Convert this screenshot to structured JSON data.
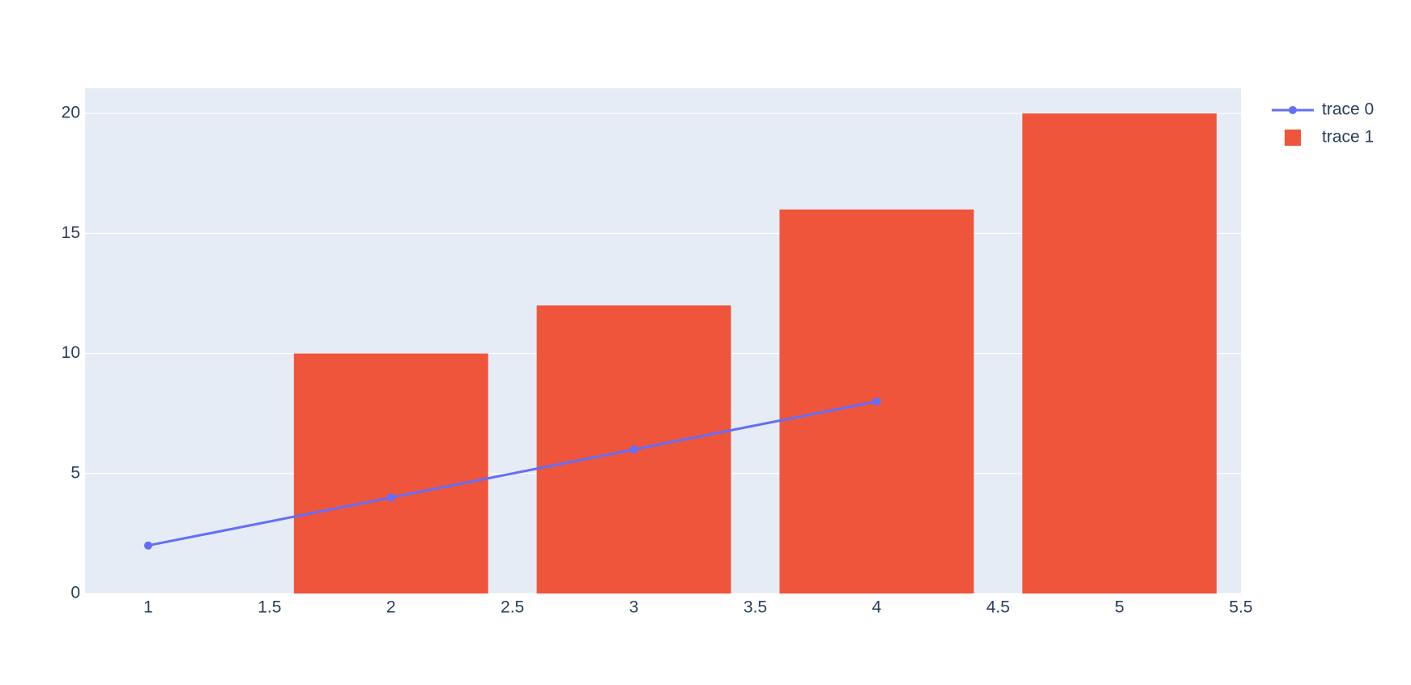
{
  "chart_data": {
    "type": "bar",
    "series": [
      {
        "name": "trace 0",
        "type": "line",
        "color": "#636efa",
        "x": [
          1,
          2,
          3,
          4
        ],
        "values": [
          2,
          4,
          6,
          8
        ]
      },
      {
        "name": "trace 1",
        "type": "bar",
        "color": "#ef553b",
        "width": 0.8,
        "x": [
          2,
          3,
          4,
          5
        ],
        "values": [
          10,
          12,
          16,
          20
        ]
      }
    ],
    "xlim": [
      0.74,
      5.5
    ],
    "xticks": [
      1,
      1.5,
      2,
      2.5,
      3,
      3.5,
      4,
      4.5,
      5,
      5.5
    ],
    "ylim": [
      0,
      21.05
    ],
    "yticks": [
      0,
      5,
      10,
      15,
      20
    ],
    "grid": "y",
    "background": "#e5ecf6",
    "legend": "top-right"
  }
}
